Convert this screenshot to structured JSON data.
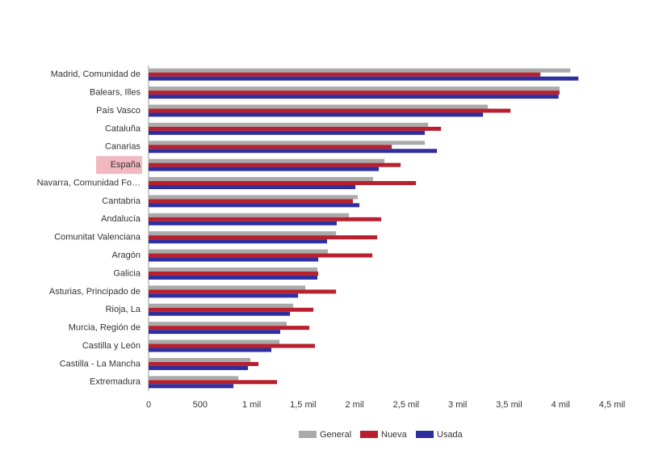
{
  "chart_data": {
    "type": "hbar",
    "categories": [
      "Madrid, Comunidad de",
      "Balears, Illes",
      "País Vasco",
      "Cataluña",
      "Canarias",
      "España",
      "Navarra, Comunidad Fo…",
      "Cantabria",
      "Andalucía",
      "Comunitat Valenciana",
      "Aragón",
      "Galicia",
      "Asturias, Principado de",
      "Rioja, La",
      "Murcia, Región de",
      "Castilla y León",
      "Castilla - La Mancha",
      "Extremadura"
    ],
    "series": [
      {
        "name": "General",
        "color": "#aaaaaa",
        "values": [
          4094,
          3990,
          3294,
          2714,
          2682,
          2290,
          2180,
          2031,
          1945,
          1820,
          1741,
          1639,
          1522,
          1404,
          1341,
          1271,
          988,
          871
        ]
      },
      {
        "name": "Nueva",
        "color": "#b8202e",
        "values": [
          3804,
          3990,
          3514,
          2839,
          2361,
          2447,
          2596,
          1984,
          2259,
          2220,
          2173,
          1647,
          1820,
          1600,
          1561,
          1616,
          1067,
          1247
        ]
      },
      {
        "name": "Usada",
        "color": "#2e2e9e",
        "values": [
          4173,
          3980,
          3247,
          2682,
          2800,
          2235,
          2008,
          2047,
          1827,
          1733,
          1647,
          1639,
          1451,
          1373,
          1278,
          1192,
          965,
          824
        ]
      }
    ],
    "highlighted_category": "España",
    "xlim": [
      0,
      4500
    ],
    "xticks": [
      0,
      500,
      {
        "value": 1000,
        "label": "1 mil"
      },
      {
        "value": 1500,
        "label": "1,5 mil"
      },
      {
        "value": 2000,
        "label": "2 mil"
      },
      {
        "value": 2500,
        "label": "2,5 mil"
      },
      {
        "value": 3000,
        "label": "3 mil"
      },
      {
        "value": 3500,
        "label": "3,5 mil"
      },
      {
        "value": 4000,
        "label": "4 mil"
      },
      {
        "value": 4500,
        "label": "4,5 mil"
      }
    ],
    "legend_position": "bottom"
  }
}
